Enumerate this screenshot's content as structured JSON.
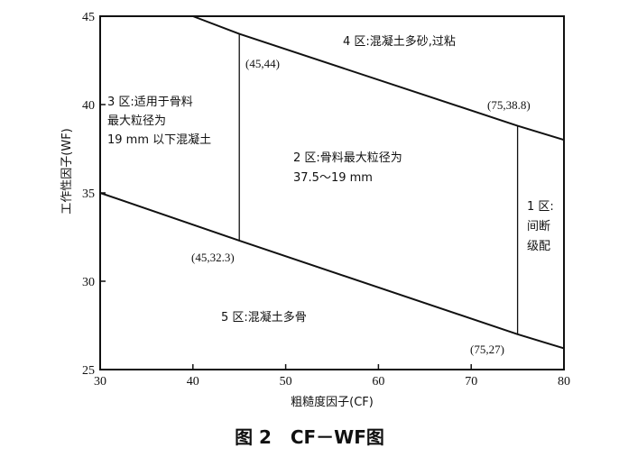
{
  "chart_data": {
    "type": "line",
    "title": "图 2   CF－WF图",
    "xlabel": "粗糙度因子(CF)",
    "ylabel": "工作性因子(WF)",
    "xlim": [
      30,
      80
    ],
    "ylim": [
      25,
      45
    ],
    "x_ticks": [
      "30",
      "40",
      "50",
      "60",
      "70",
      "80"
    ],
    "y_ticks": [
      "25",
      "30",
      "35",
      "40",
      "45"
    ],
    "grid": false,
    "legend": "none",
    "series": [
      {
        "x": [
          30,
          45,
          75,
          80
        ],
        "y": [
          35,
          32.3,
          27,
          26.2
        ]
      },
      {
        "x": [
          40,
          45,
          75,
          80
        ],
        "y": [
          45,
          44,
          38.8,
          38
        ]
      },
      {
        "x": [
          45,
          45
        ],
        "y": [
          32.3,
          44
        ]
      },
      {
        "x": [
          75,
          75
        ],
        "y": [
          27,
          38.8
        ]
      }
    ],
    "points": [
      {
        "x": 45,
        "y": 44,
        "label": "(45,44)"
      },
      {
        "x": 75,
        "y": 38.8,
        "label": "(75,38.8)"
      },
      {
        "x": 45,
        "y": 32.3,
        "label": "(45,32.3)"
      },
      {
        "x": 75,
        "y": 27,
        "label": "(75,27)"
      }
    ],
    "regions": [
      {
        "id": "region-4",
        "lines": [
          "4 区:混凝土多砂,过粘"
        ]
      },
      {
        "id": "region-3",
        "lines": [
          "3 区:适用于骨料",
          "最大粒径为",
          "19 mm 以下混凝土"
        ]
      },
      {
        "id": "region-2",
        "lines": [
          "2 区:骨料最大粒径为",
          "37.5～19 mm"
        ]
      },
      {
        "id": "region-1",
        "lines": [
          "1 区:",
          "间断",
          "级配"
        ]
      },
      {
        "id": "region-5",
        "lines": [
          "5 区:混凝土多骨"
        ]
      }
    ]
  }
}
